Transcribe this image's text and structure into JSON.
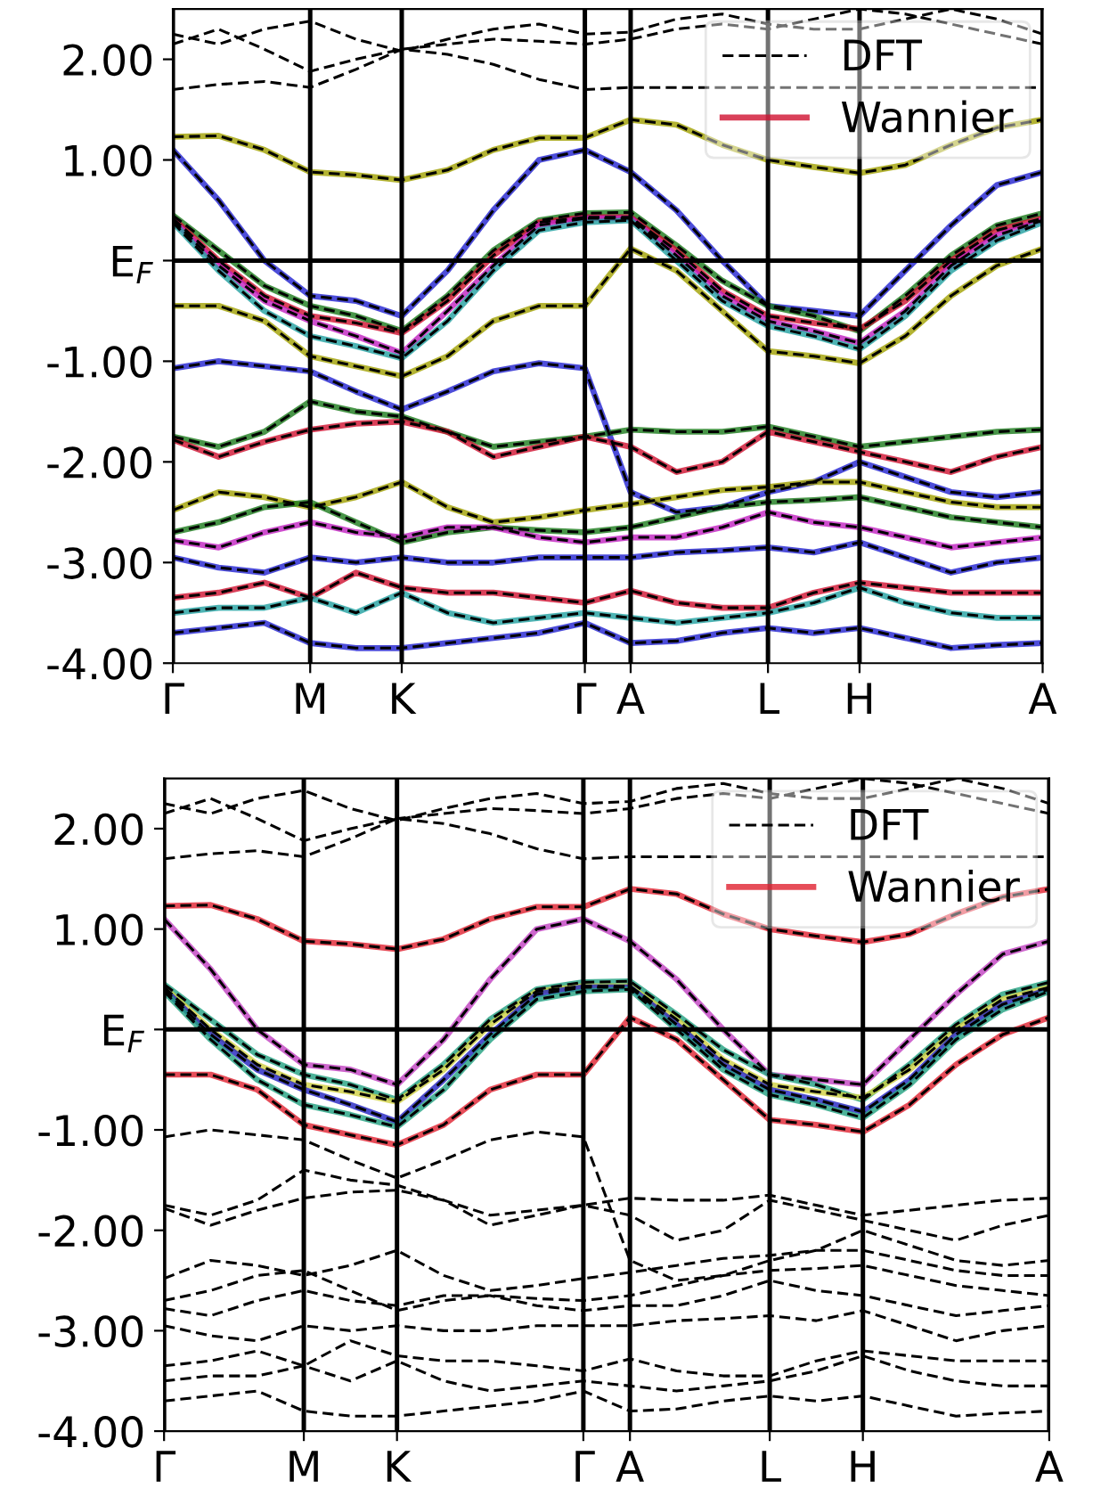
{
  "chart_data": [
    {
      "type": "line",
      "categories": [
        "Γ",
        null,
        null,
        "M",
        null,
        "K",
        null,
        null,
        null,
        "Γ",
        "A",
        null,
        null,
        "L",
        null,
        "H",
        null,
        null,
        null,
        "A"
      ],
      "ylim": [
        -4,
        2.5
      ],
      "yticks": [
        {
          "value": -4,
          "label": "-4.00"
        },
        {
          "value": -3,
          "label": "-3.00"
        },
        {
          "value": -2,
          "label": "-2.00"
        },
        {
          "value": -1,
          "label": "-1.00"
        },
        {
          "value": 0,
          "label": "E$_{F}$"
        },
        {
          "value": 1,
          "label": "1.00"
        },
        {
          "value": 2,
          "label": "2.00"
        }
      ],
      "grid": "x",
      "legend": "top right",
      "ref_lines": [
        {
          "axis": "y",
          "value": 0,
          "color": "#000000",
          "line_style": "solid"
        }
      ],
      "series": [
        {
          "color": "#a0a000",
          "line_style": "solid",
          "values": [
            1.23,
            1.24,
            1.1,
            0.88,
            0.85,
            0.8,
            0.9,
            1.1,
            1.22,
            1.22,
            1.4,
            1.35,
            1.15,
            1.0,
            0.93,
            0.87,
            0.95,
            1.15,
            1.32,
            1.4
          ]
        },
        {
          "color": "#2020d0",
          "line_style": "solid",
          "values": [
            1.1,
            0.6,
            0.0,
            -0.35,
            -0.4,
            -0.55,
            -0.1,
            0.5,
            1.0,
            1.1,
            0.88,
            0.5,
            0.0,
            -0.45,
            -0.5,
            -0.55,
            -0.1,
            0.35,
            0.75,
            0.88
          ]
        },
        {
          "color": "#1a7a1a",
          "line_style": "solid",
          "values": [
            0.45,
            0.1,
            -0.25,
            -0.45,
            -0.55,
            -0.7,
            -0.35,
            0.1,
            0.4,
            0.47,
            0.48,
            0.15,
            -0.2,
            -0.45,
            -0.55,
            -0.7,
            -0.35,
            0.05,
            0.35,
            0.47
          ]
        },
        {
          "name": "Wannier",
          "color": "#d01030",
          "line_style": "solid",
          "values": [
            0.42,
            0.0,
            -0.35,
            -0.55,
            -0.62,
            -0.72,
            -0.4,
            0.05,
            0.38,
            0.43,
            0.43,
            0.1,
            -0.3,
            -0.55,
            -0.62,
            -0.68,
            -0.4,
            0.0,
            0.3,
            0.42
          ]
        },
        {
          "color": "#c020c0",
          "line_style": "solid",
          "values": [
            0.4,
            -0.05,
            -0.4,
            -0.6,
            -0.75,
            -0.92,
            -0.5,
            -0.05,
            0.35,
            0.42,
            0.42,
            0.05,
            -0.35,
            -0.6,
            -0.7,
            -0.82,
            -0.5,
            -0.05,
            0.25,
            0.4
          ]
        },
        {
          "color": "#20a0a0",
          "line_style": "solid",
          "values": [
            0.38,
            -0.1,
            -0.5,
            -0.75,
            -0.85,
            -0.97,
            -0.6,
            -0.1,
            0.3,
            0.38,
            0.4,
            0.0,
            -0.4,
            -0.65,
            -0.75,
            -0.88,
            -0.55,
            -0.1,
            0.2,
            0.38
          ]
        },
        {
          "color": "#a0a000",
          "line_style": "solid",
          "values": [
            -0.45,
            -0.45,
            -0.6,
            -0.95,
            -1.05,
            -1.15,
            -0.95,
            -0.6,
            -0.45,
            -0.45,
            0.12,
            -0.1,
            -0.5,
            -0.9,
            -0.95,
            -1.02,
            -0.75,
            -0.35,
            -0.05,
            0.12
          ]
        },
        {
          "color": "#2020d0",
          "line_style": "solid",
          "values": [
            -1.07,
            -1.0,
            -1.05,
            -1.1,
            -1.3,
            -1.48,
            -1.3,
            -1.1,
            -1.02,
            -1.07,
            -2.3,
            -2.5,
            -2.45,
            -2.3,
            -2.2,
            -2.0,
            -2.15,
            -2.3,
            -2.35,
            -2.3
          ]
        },
        {
          "color": "#1a7a1a",
          "line_style": "solid",
          "values": [
            -1.75,
            -1.85,
            -1.7,
            -1.4,
            -1.5,
            -1.55,
            -1.7,
            -1.85,
            -1.8,
            -1.75,
            -1.68,
            -1.7,
            -1.7,
            -1.65,
            -1.75,
            -1.85,
            -1.8,
            -1.75,
            -1.7,
            -1.68
          ]
        },
        {
          "color": "#d01030",
          "line_style": "solid",
          "values": [
            -1.78,
            -1.95,
            -1.8,
            -1.68,
            -1.62,
            -1.6,
            -1.7,
            -1.95,
            -1.85,
            -1.75,
            -1.85,
            -2.1,
            -2.0,
            -1.7,
            -1.8,
            -1.9,
            -2.0,
            -2.1,
            -1.95,
            -1.85
          ]
        },
        {
          "color": "#a0a000",
          "line_style": "solid",
          "values": [
            -2.48,
            -2.3,
            -2.35,
            -2.45,
            -2.35,
            -2.2,
            -2.45,
            -2.6,
            -2.55,
            -2.48,
            -2.42,
            -2.35,
            -2.28,
            -2.25,
            -2.2,
            -2.2,
            -2.3,
            -2.4,
            -2.45,
            -2.45
          ]
        },
        {
          "color": "#1a7a1a",
          "line_style": "solid",
          "values": [
            -2.7,
            -2.6,
            -2.45,
            -2.4,
            -2.6,
            -2.8,
            -2.7,
            -2.65,
            -2.68,
            -2.7,
            -2.65,
            -2.55,
            -2.45,
            -2.4,
            -2.38,
            -2.35,
            -2.45,
            -2.55,
            -2.6,
            -2.65
          ]
        },
        {
          "color": "#c020c0",
          "line_style": "solid",
          "values": [
            -2.78,
            -2.85,
            -2.7,
            -2.6,
            -2.7,
            -2.75,
            -2.65,
            -2.65,
            -2.75,
            -2.8,
            -2.75,
            -2.75,
            -2.65,
            -2.5,
            -2.6,
            -2.65,
            -2.75,
            -2.85,
            -2.8,
            -2.75
          ]
        },
        {
          "color": "#2020d0",
          "line_style": "solid",
          "values": [
            -2.95,
            -3.05,
            -3.1,
            -2.95,
            -3.0,
            -2.95,
            -3.0,
            -3.0,
            -2.95,
            -2.95,
            -2.95,
            -2.9,
            -2.88,
            -2.85,
            -2.9,
            -2.8,
            -2.95,
            -3.1,
            -3.0,
            -2.95
          ]
        },
        {
          "color": "#d01030",
          "line_style": "solid",
          "values": [
            -3.35,
            -3.3,
            -3.2,
            -3.35,
            -3.1,
            -3.25,
            -3.3,
            -3.3,
            -3.35,
            -3.4,
            -3.28,
            -3.4,
            -3.45,
            -3.45,
            -3.3,
            -3.2,
            -3.25,
            -3.3,
            -3.3,
            -3.3
          ]
        },
        {
          "color": "#20a0a0",
          "line_style": "solid",
          "values": [
            -3.5,
            -3.45,
            -3.45,
            -3.35,
            -3.5,
            -3.3,
            -3.5,
            -3.6,
            -3.55,
            -3.5,
            -3.55,
            -3.6,
            -3.55,
            -3.5,
            -3.4,
            -3.25,
            -3.4,
            -3.5,
            -3.55,
            -3.55
          ]
        },
        {
          "color": "#2020d0",
          "line_style": "solid",
          "values": [
            -3.7,
            -3.65,
            -3.6,
            -3.8,
            -3.85,
            -3.85,
            -3.8,
            -3.75,
            -3.7,
            -3.6,
            -3.8,
            -3.78,
            -3.7,
            -3.65,
            -3.7,
            -3.65,
            -3.75,
            -3.85,
            -3.82,
            -3.8
          ]
        },
        {
          "name": "DFT",
          "color": "#000000",
          "line_style": "dashed",
          "values": [
            1.7,
            1.75,
            1.78,
            1.72,
            1.9,
            2.1,
            2.05,
            1.95,
            1.8,
            1.7,
            1.72,
            1.72,
            1.72,
            1.72,
            1.72,
            1.72,
            1.72,
            1.72,
            1.72,
            1.72
          ]
        },
        {
          "color": "#000000",
          "line_style": "dashed",
          "values": [
            2.15,
            2.3,
            2.1,
            1.88,
            2.0,
            2.1,
            2.15,
            2.2,
            2.18,
            2.15,
            2.2,
            2.3,
            2.35,
            2.3,
            2.4,
            2.5,
            2.45,
            2.35,
            2.25,
            2.15
          ]
        },
        {
          "color": "#000000",
          "line_style": "dashed",
          "values": [
            2.25,
            2.15,
            2.3,
            2.38,
            2.2,
            2.08,
            2.2,
            2.3,
            2.35,
            2.25,
            2.27,
            2.4,
            2.45,
            2.35,
            2.3,
            2.3,
            2.4,
            2.5,
            2.4,
            2.25
          ]
        },
        {
          "color": "#000000",
          "line_style": "dashed",
          "values": [
            1.23,
            1.24,
            1.1,
            0.88,
            0.85,
            0.8,
            0.9,
            1.1,
            1.22,
            1.22,
            1.4,
            1.35,
            1.15,
            1.0,
            0.93,
            0.87,
            0.95,
            1.15,
            1.32,
            1.4
          ]
        },
        {
          "color": "#000000",
          "line_style": "dashed",
          "values": [
            1.1,
            0.6,
            0.0,
            -0.35,
            -0.4,
            -0.55,
            -0.1,
            0.5,
            1.0,
            1.1,
            0.88,
            0.5,
            0.0,
            -0.45,
            -0.5,
            -0.55,
            -0.1,
            0.35,
            0.75,
            0.88
          ]
        },
        {
          "color": "#000000",
          "line_style": "dashed",
          "values": [
            0.45,
            0.1,
            -0.25,
            -0.45,
            -0.55,
            -0.7,
            -0.35,
            0.1,
            0.4,
            0.47,
            0.48,
            0.15,
            -0.2,
            -0.45,
            -0.55,
            -0.7,
            -0.35,
            0.05,
            0.35,
            0.47
          ]
        },
        {
          "color": "#000000",
          "line_style": "dashed",
          "values": [
            0.42,
            0.0,
            -0.35,
            -0.55,
            -0.62,
            -0.72,
            -0.4,
            0.05,
            0.38,
            0.43,
            0.43,
            0.1,
            -0.3,
            -0.55,
            -0.62,
            -0.68,
            -0.4,
            0.0,
            0.3,
            0.42
          ]
        },
        {
          "color": "#000000",
          "line_style": "dashed",
          "values": [
            0.4,
            -0.05,
            -0.4,
            -0.6,
            -0.75,
            -0.92,
            -0.5,
            -0.05,
            0.35,
            0.42,
            0.42,
            0.05,
            -0.35,
            -0.6,
            -0.7,
            -0.82,
            -0.5,
            -0.05,
            0.25,
            0.4
          ]
        },
        {
          "color": "#000000",
          "line_style": "dashed",
          "values": [
            0.38,
            -0.1,
            -0.5,
            -0.75,
            -0.85,
            -0.97,
            -0.6,
            -0.1,
            0.3,
            0.38,
            0.4,
            0.0,
            -0.4,
            -0.65,
            -0.75,
            -0.88,
            -0.55,
            -0.1,
            0.2,
            0.38
          ]
        },
        {
          "color": "#000000",
          "line_style": "dashed",
          "values": [
            -0.45,
            -0.45,
            -0.6,
            -0.95,
            -1.05,
            -1.15,
            -0.95,
            -0.6,
            -0.45,
            -0.45,
            0.12,
            -0.1,
            -0.5,
            -0.9,
            -0.95,
            -1.02,
            -0.75,
            -0.35,
            -0.05,
            0.12
          ]
        },
        {
          "color": "#000000",
          "line_style": "dashed",
          "values": [
            -1.07,
            -1.0,
            -1.05,
            -1.1,
            -1.3,
            -1.48,
            -1.3,
            -1.1,
            -1.02,
            -1.07,
            -2.3,
            -2.5,
            -2.45,
            -2.3,
            -2.2,
            -2.0,
            -2.15,
            -2.3,
            -2.35,
            -2.3
          ]
        },
        {
          "color": "#000000",
          "line_style": "dashed",
          "values": [
            -1.75,
            -1.85,
            -1.7,
            -1.4,
            -1.5,
            -1.55,
            -1.7,
            -1.85,
            -1.8,
            -1.75,
            -1.68,
            -1.7,
            -1.7,
            -1.65,
            -1.75,
            -1.85,
            -1.8,
            -1.75,
            -1.7,
            -1.68
          ]
        },
        {
          "color": "#000000",
          "line_style": "dashed",
          "values": [
            -1.78,
            -1.95,
            -1.8,
            -1.68,
            -1.62,
            -1.6,
            -1.7,
            -1.95,
            -1.85,
            -1.75,
            -1.85,
            -2.1,
            -2.0,
            -1.7,
            -1.8,
            -1.9,
            -2.0,
            -2.1,
            -1.95,
            -1.85
          ]
        },
        {
          "color": "#000000",
          "line_style": "dashed",
          "values": [
            -2.48,
            -2.3,
            -2.35,
            -2.45,
            -2.35,
            -2.2,
            -2.45,
            -2.6,
            -2.55,
            -2.48,
            -2.42,
            -2.35,
            -2.28,
            -2.25,
            -2.2,
            -2.2,
            -2.3,
            -2.4,
            -2.45,
            -2.45
          ]
        },
        {
          "color": "#000000",
          "line_style": "dashed",
          "values": [
            -2.7,
            -2.6,
            -2.45,
            -2.4,
            -2.6,
            -2.8,
            -2.7,
            -2.65,
            -2.68,
            -2.7,
            -2.65,
            -2.55,
            -2.45,
            -2.4,
            -2.38,
            -2.35,
            -2.45,
            -2.55,
            -2.6,
            -2.65
          ]
        },
        {
          "color": "#000000",
          "line_style": "dashed",
          "values": [
            -2.78,
            -2.85,
            -2.7,
            -2.6,
            -2.7,
            -2.75,
            -2.65,
            -2.65,
            -2.75,
            -2.8,
            -2.75,
            -2.75,
            -2.65,
            -2.5,
            -2.6,
            -2.65,
            -2.75,
            -2.85,
            -2.8,
            -2.75
          ]
        },
        {
          "color": "#000000",
          "line_style": "dashed",
          "values": [
            -2.95,
            -3.05,
            -3.1,
            -2.95,
            -3.0,
            -2.95,
            -3.0,
            -3.0,
            -2.95,
            -2.95,
            -2.95,
            -2.9,
            -2.88,
            -2.85,
            -2.9,
            -2.8,
            -2.95,
            -3.1,
            -3.0,
            -2.95
          ]
        },
        {
          "color": "#000000",
          "line_style": "dashed",
          "values": [
            -3.35,
            -3.3,
            -3.2,
            -3.35,
            -3.1,
            -3.25,
            -3.3,
            -3.3,
            -3.35,
            -3.4,
            -3.28,
            -3.4,
            -3.45,
            -3.45,
            -3.3,
            -3.2,
            -3.25,
            -3.3,
            -3.3,
            -3.3
          ]
        },
        {
          "color": "#000000",
          "line_style": "dashed",
          "values": [
            -3.5,
            -3.45,
            -3.45,
            -3.35,
            -3.5,
            -3.3,
            -3.5,
            -3.6,
            -3.55,
            -3.5,
            -3.55,
            -3.6,
            -3.55,
            -3.5,
            -3.4,
            -3.25,
            -3.4,
            -3.5,
            -3.55,
            -3.55
          ]
        },
        {
          "color": "#000000",
          "line_style": "dashed",
          "values": [
            -3.7,
            -3.65,
            -3.6,
            -3.8,
            -3.85,
            -3.85,
            -3.8,
            -3.75,
            -3.7,
            -3.6,
            -3.8,
            -3.78,
            -3.7,
            -3.65,
            -3.7,
            -3.65,
            -3.75,
            -3.85,
            -3.82,
            -3.8
          ]
        }
      ]
    },
    {
      "type": "line",
      "categories": [
        "Γ",
        null,
        null,
        "M",
        null,
        "K",
        null,
        null,
        null,
        "Γ",
        "A",
        null,
        null,
        "L",
        null,
        "H",
        null,
        null,
        null,
        "A"
      ],
      "ylim": [
        -4,
        2.5
      ],
      "yticks": [
        {
          "value": -4,
          "label": "-4.00"
        },
        {
          "value": -3,
          "label": "-3.00"
        },
        {
          "value": -2,
          "label": "-2.00"
        },
        {
          "value": -1,
          "label": "-1.00"
        },
        {
          "value": 0,
          "label": "E$_{F}$"
        },
        {
          "value": 1,
          "label": "1.00"
        },
        {
          "value": 2,
          "label": "2.00"
        }
      ],
      "grid": "x",
      "legend": "top right",
      "ref_lines": [
        {
          "axis": "y",
          "value": 0,
          "color": "#000000",
          "line_style": "solid"
        }
      ],
      "series": [
        {
          "name": "Wannier",
          "color": "#e02030",
          "line_style": "solid",
          "values": [
            1.23,
            1.24,
            1.1,
            0.88,
            0.85,
            0.8,
            0.9,
            1.1,
            1.22,
            1.22,
            1.4,
            1.35,
            1.15,
            1.0,
            0.93,
            0.87,
            0.95,
            1.15,
            1.32,
            1.4
          ]
        },
        {
          "color": "#c040c0",
          "line_style": "solid",
          "values": [
            1.1,
            0.6,
            0.0,
            -0.35,
            -0.4,
            -0.55,
            -0.1,
            0.5,
            1.0,
            1.1,
            0.88,
            0.5,
            0.0,
            -0.45,
            -0.5,
            -0.55,
            -0.1,
            0.35,
            0.75,
            0.88
          ]
        },
        {
          "color": "#20a080",
          "line_style": "solid",
          "values": [
            0.45,
            0.1,
            -0.25,
            -0.45,
            -0.55,
            -0.7,
            -0.35,
            0.1,
            0.4,
            0.47,
            0.48,
            0.15,
            -0.2,
            -0.45,
            -0.55,
            -0.7,
            -0.35,
            0.05,
            0.35,
            0.47
          ]
        },
        {
          "color": "#d0d040",
          "line_style": "solid",
          "values": [
            0.42,
            0.0,
            -0.35,
            -0.55,
            -0.62,
            -0.72,
            -0.4,
            0.05,
            0.38,
            0.43,
            0.43,
            0.1,
            -0.3,
            -0.55,
            -0.62,
            -0.68,
            -0.4,
            0.0,
            0.3,
            0.42
          ]
        },
        {
          "color": "#2020c0",
          "line_style": "solid",
          "values": [
            0.4,
            -0.05,
            -0.4,
            -0.6,
            -0.75,
            -0.92,
            -0.5,
            -0.05,
            0.35,
            0.42,
            0.42,
            0.05,
            -0.35,
            -0.6,
            -0.7,
            -0.82,
            -0.5,
            -0.05,
            0.25,
            0.4
          ]
        },
        {
          "color": "#20a080",
          "line_style": "solid",
          "values": [
            0.38,
            -0.1,
            -0.5,
            -0.75,
            -0.85,
            -0.97,
            -0.6,
            -0.1,
            0.3,
            0.38,
            0.4,
            0.0,
            -0.4,
            -0.65,
            -0.75,
            -0.88,
            -0.55,
            -0.1,
            0.2,
            0.38
          ]
        },
        {
          "color": "#e02030",
          "line_style": "solid",
          "values": [
            -0.45,
            -0.45,
            -0.6,
            -0.95,
            -1.05,
            -1.15,
            -0.95,
            -0.6,
            -0.45,
            -0.45,
            0.12,
            -0.1,
            -0.5,
            -0.9,
            -0.95,
            -1.02,
            -0.75,
            -0.35,
            -0.05,
            0.12
          ]
        },
        {
          "name": "DFT",
          "color": "#000000",
          "line_style": "dashed",
          "values": [
            1.7,
            1.75,
            1.78,
            1.72,
            1.9,
            2.1,
            2.05,
            1.95,
            1.8,
            1.7,
            1.72,
            1.72,
            1.72,
            1.72,
            1.72,
            1.72,
            1.72,
            1.72,
            1.72,
            1.72
          ]
        },
        {
          "color": "#000000",
          "line_style": "dashed",
          "values": [
            2.15,
            2.3,
            2.1,
            1.88,
            2.0,
            2.1,
            2.15,
            2.2,
            2.18,
            2.15,
            2.2,
            2.3,
            2.35,
            2.3,
            2.4,
            2.5,
            2.45,
            2.35,
            2.25,
            2.15
          ]
        },
        {
          "color": "#000000",
          "line_style": "dashed",
          "values": [
            2.25,
            2.15,
            2.3,
            2.38,
            2.2,
            2.08,
            2.2,
            2.3,
            2.35,
            2.25,
            2.27,
            2.4,
            2.45,
            2.35,
            2.3,
            2.3,
            2.4,
            2.5,
            2.4,
            2.25
          ]
        },
        {
          "color": "#000000",
          "line_style": "dashed",
          "values": [
            1.23,
            1.24,
            1.1,
            0.88,
            0.85,
            0.8,
            0.9,
            1.1,
            1.22,
            1.22,
            1.4,
            1.35,
            1.15,
            1.0,
            0.93,
            0.87,
            0.95,
            1.15,
            1.32,
            1.4
          ]
        },
        {
          "color": "#000000",
          "line_style": "dashed",
          "values": [
            1.1,
            0.6,
            0.0,
            -0.35,
            -0.4,
            -0.55,
            -0.1,
            0.5,
            1.0,
            1.1,
            0.88,
            0.5,
            0.0,
            -0.45,
            -0.5,
            -0.55,
            -0.1,
            0.35,
            0.75,
            0.88
          ]
        },
        {
          "color": "#000000",
          "line_style": "dashed",
          "values": [
            0.45,
            0.1,
            -0.25,
            -0.45,
            -0.55,
            -0.7,
            -0.35,
            0.1,
            0.4,
            0.47,
            0.48,
            0.15,
            -0.2,
            -0.45,
            -0.55,
            -0.7,
            -0.35,
            0.05,
            0.35,
            0.47
          ]
        },
        {
          "color": "#000000",
          "line_style": "dashed",
          "values": [
            0.42,
            0.0,
            -0.35,
            -0.55,
            -0.62,
            -0.72,
            -0.4,
            0.05,
            0.38,
            0.43,
            0.43,
            0.1,
            -0.3,
            -0.55,
            -0.62,
            -0.68,
            -0.4,
            0.0,
            0.3,
            0.42
          ]
        },
        {
          "color": "#000000",
          "line_style": "dashed",
          "values": [
            0.4,
            -0.05,
            -0.4,
            -0.6,
            -0.75,
            -0.92,
            -0.5,
            -0.05,
            0.35,
            0.42,
            0.42,
            0.05,
            -0.35,
            -0.6,
            -0.7,
            -0.82,
            -0.5,
            -0.05,
            0.25,
            0.4
          ]
        },
        {
          "color": "#000000",
          "line_style": "dashed",
          "values": [
            0.38,
            -0.1,
            -0.5,
            -0.75,
            -0.85,
            -0.97,
            -0.6,
            -0.1,
            0.3,
            0.38,
            0.4,
            0.0,
            -0.4,
            -0.65,
            -0.75,
            -0.88,
            -0.55,
            -0.1,
            0.2,
            0.38
          ]
        },
        {
          "color": "#000000",
          "line_style": "dashed",
          "values": [
            -0.45,
            -0.45,
            -0.6,
            -0.95,
            -1.05,
            -1.15,
            -0.95,
            -0.6,
            -0.45,
            -0.45,
            0.12,
            -0.1,
            -0.5,
            -0.9,
            -0.95,
            -1.02,
            -0.75,
            -0.35,
            -0.05,
            0.12
          ]
        },
        {
          "color": "#000000",
          "line_style": "dashed",
          "values": [
            -1.07,
            -1.0,
            -1.05,
            -1.1,
            -1.3,
            -1.48,
            -1.3,
            -1.1,
            -1.02,
            -1.07,
            -2.3,
            -2.5,
            -2.45,
            -2.3,
            -2.2,
            -2.0,
            -2.15,
            -2.3,
            -2.35,
            -2.3
          ]
        },
        {
          "color": "#000000",
          "line_style": "dashed",
          "values": [
            -1.75,
            -1.85,
            -1.7,
            -1.4,
            -1.5,
            -1.55,
            -1.7,
            -1.85,
            -1.8,
            -1.75,
            -1.68,
            -1.7,
            -1.7,
            -1.65,
            -1.75,
            -1.85,
            -1.8,
            -1.75,
            -1.7,
            -1.68
          ]
        },
        {
          "color": "#000000",
          "line_style": "dashed",
          "values": [
            -1.78,
            -1.95,
            -1.8,
            -1.68,
            -1.62,
            -1.6,
            -1.7,
            -1.95,
            -1.85,
            -1.75,
            -1.85,
            -2.1,
            -2.0,
            -1.7,
            -1.8,
            -1.9,
            -2.0,
            -2.1,
            -1.95,
            -1.85
          ]
        },
        {
          "color": "#000000",
          "line_style": "dashed",
          "values": [
            -2.48,
            -2.3,
            -2.35,
            -2.45,
            -2.35,
            -2.2,
            -2.45,
            -2.6,
            -2.55,
            -2.48,
            -2.42,
            -2.35,
            -2.28,
            -2.25,
            -2.2,
            -2.2,
            -2.3,
            -2.4,
            -2.45,
            -2.45
          ]
        },
        {
          "color": "#000000",
          "line_style": "dashed",
          "values": [
            -2.7,
            -2.6,
            -2.45,
            -2.4,
            -2.6,
            -2.8,
            -2.7,
            -2.65,
            -2.68,
            -2.7,
            -2.65,
            -2.55,
            -2.45,
            -2.4,
            -2.38,
            -2.35,
            -2.45,
            -2.55,
            -2.6,
            -2.65
          ]
        },
        {
          "color": "#000000",
          "line_style": "dashed",
          "values": [
            -2.78,
            -2.85,
            -2.7,
            -2.6,
            -2.7,
            -2.75,
            -2.65,
            -2.65,
            -2.75,
            -2.8,
            -2.75,
            -2.75,
            -2.65,
            -2.5,
            -2.6,
            -2.65,
            -2.75,
            -2.85,
            -2.8,
            -2.75
          ]
        },
        {
          "color": "#000000",
          "line_style": "dashed",
          "values": [
            -2.95,
            -3.05,
            -3.1,
            -2.95,
            -3.0,
            -2.95,
            -3.0,
            -3.0,
            -2.95,
            -2.95,
            -2.95,
            -2.9,
            -2.88,
            -2.85,
            -2.9,
            -2.8,
            -2.95,
            -3.1,
            -3.0,
            -2.95
          ]
        },
        {
          "color": "#000000",
          "line_style": "dashed",
          "values": [
            -3.35,
            -3.3,
            -3.2,
            -3.35,
            -3.1,
            -3.25,
            -3.3,
            -3.3,
            -3.35,
            -3.4,
            -3.28,
            -3.4,
            -3.45,
            -3.45,
            -3.3,
            -3.2,
            -3.25,
            -3.3,
            -3.3,
            -3.3
          ]
        },
        {
          "color": "#000000",
          "line_style": "dashed",
          "values": [
            -3.5,
            -3.45,
            -3.45,
            -3.35,
            -3.5,
            -3.3,
            -3.5,
            -3.6,
            -3.55,
            -3.5,
            -3.55,
            -3.6,
            -3.55,
            -3.5,
            -3.4,
            -3.25,
            -3.4,
            -3.5,
            -3.55,
            -3.55
          ]
        },
        {
          "color": "#000000",
          "line_style": "dashed",
          "values": [
            -3.7,
            -3.65,
            -3.6,
            -3.8,
            -3.85,
            -3.85,
            -3.8,
            -3.75,
            -3.7,
            -3.6,
            -3.8,
            -3.78,
            -3.7,
            -3.65,
            -3.7,
            -3.65,
            -3.75,
            -3.85,
            -3.82,
            -3.8
          ]
        }
      ]
    }
  ]
}
